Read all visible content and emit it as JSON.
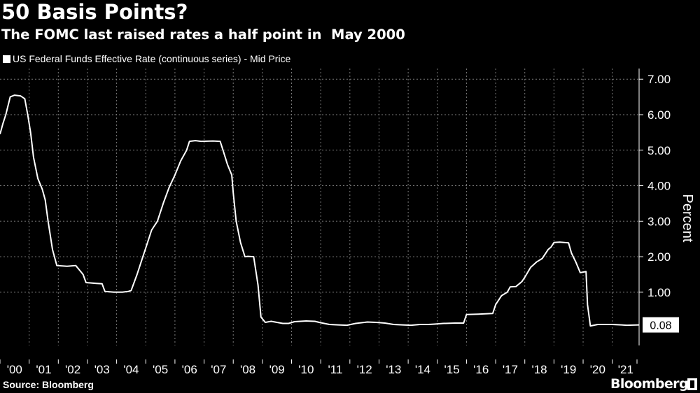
{
  "header": {
    "title": "50 Basis Points?",
    "subtitle": "The FOMC last raised rates a half point in  May 2000"
  },
  "footer": {
    "source": "Source: Bloomberg",
    "brand": "Bloomberg"
  },
  "colors": {
    "background": "#000000",
    "line": "#ffffff",
    "grid": "#7a7a7a",
    "text": "#ffffff"
  },
  "chart_data": {
    "type": "line",
    "ylabel": "Percent",
    "ylim": [
      -0.5,
      7.3
    ],
    "yticks": [
      1.0,
      2.0,
      3.0,
      4.0,
      5.0,
      6.0,
      7.0
    ],
    "ytick_labels": [
      "1.00",
      "2.00",
      "3.00",
      "4.00",
      "5.00",
      "6.00",
      "7.00"
    ],
    "xlim": [
      2000.0,
      2021.92
    ],
    "xticks": [
      2000,
      2001,
      2002,
      2003,
      2004,
      2005,
      2006,
      2007,
      2008,
      2009,
      2010,
      2011,
      2012,
      2013,
      2014,
      2015,
      2016,
      2017,
      2018,
      2019,
      2020,
      2021
    ],
    "xtick_labels": [
      "'00",
      "'01",
      "'02",
      "'03",
      "'04",
      "'05",
      "'06",
      "'07",
      "'08",
      "'09",
      "'10",
      "'11",
      "'12",
      "'13",
      "'14",
      "'15",
      "'16",
      "'17",
      "'18",
      "'19",
      "'20",
      "'21"
    ],
    "grid": true,
    "legend_position": "top-left",
    "last_value_label": "0.08",
    "series": [
      {
        "name": "US Federal Funds Effective Rate (continuous series) - Mid Price",
        "x": [
          2000.0,
          2000.1,
          2000.2,
          2000.35,
          2000.5,
          2000.7,
          2000.85,
          2000.95,
          2001.05,
          2001.15,
          2001.3,
          2001.45,
          2001.55,
          2001.65,
          2001.8,
          2001.95,
          2002.3,
          2002.6,
          2002.85,
          2002.95,
          2003.3,
          2003.5,
          2003.6,
          2003.9,
          2004.2,
          2004.4,
          2004.5,
          2004.7,
          2004.9,
          2005.0,
          2005.2,
          2005.4,
          2005.6,
          2005.8,
          2006.0,
          2006.2,
          2006.4,
          2006.5,
          2006.7,
          2006.9,
          2007.3,
          2007.55,
          2007.65,
          2007.8,
          2007.95,
          2008.0,
          2008.1,
          2008.25,
          2008.4,
          2008.5,
          2008.7,
          2008.85,
          2008.95,
          2009.1,
          2009.3,
          2009.5,
          2009.7,
          2009.9,
          2010.1,
          2010.5,
          2010.8,
          2011.0,
          2011.3,
          2011.6,
          2011.9,
          2012.2,
          2012.6,
          2012.9,
          2013.2,
          2013.5,
          2013.8,
          2014.1,
          2014.4,
          2014.7,
          2014.9,
          2015.2,
          2015.6,
          2015.9,
          2016.0,
          2016.4,
          2016.9,
          2017.0,
          2017.2,
          2017.4,
          2017.5,
          2017.7,
          2017.9,
          2018.0,
          2018.2,
          2018.4,
          2018.6,
          2018.8,
          2018.9,
          2019.0,
          2019.2,
          2019.5,
          2019.6,
          2019.75,
          2019.9,
          2020.1,
          2020.15,
          2020.25,
          2020.5,
          2021.0,
          2021.5,
          2021.92
        ],
        "values": [
          5.45,
          5.75,
          6.0,
          6.5,
          6.55,
          6.53,
          6.45,
          6.0,
          5.5,
          4.8,
          4.2,
          3.9,
          3.6,
          3.0,
          2.2,
          1.75,
          1.73,
          1.75,
          1.5,
          1.27,
          1.25,
          1.24,
          1.02,
          1.0,
          1.0,
          1.02,
          1.05,
          1.5,
          2.0,
          2.25,
          2.75,
          3.0,
          3.5,
          3.95,
          4.3,
          4.7,
          5.0,
          5.25,
          5.27,
          5.25,
          5.26,
          5.25,
          5.0,
          4.6,
          4.3,
          3.8,
          3.0,
          2.4,
          2.0,
          2.01,
          2.0,
          1.2,
          0.3,
          0.15,
          0.18,
          0.15,
          0.12,
          0.12,
          0.17,
          0.19,
          0.18,
          0.14,
          0.09,
          0.08,
          0.07,
          0.12,
          0.16,
          0.15,
          0.13,
          0.09,
          0.08,
          0.07,
          0.09,
          0.09,
          0.1,
          0.12,
          0.13,
          0.13,
          0.37,
          0.38,
          0.4,
          0.65,
          0.9,
          1.0,
          1.15,
          1.16,
          1.3,
          1.42,
          1.7,
          1.85,
          1.95,
          2.2,
          2.27,
          2.4,
          2.41,
          2.39,
          2.1,
          1.85,
          1.55,
          1.58,
          0.65,
          0.05,
          0.09,
          0.09,
          0.07,
          0.08
        ]
      }
    ]
  }
}
